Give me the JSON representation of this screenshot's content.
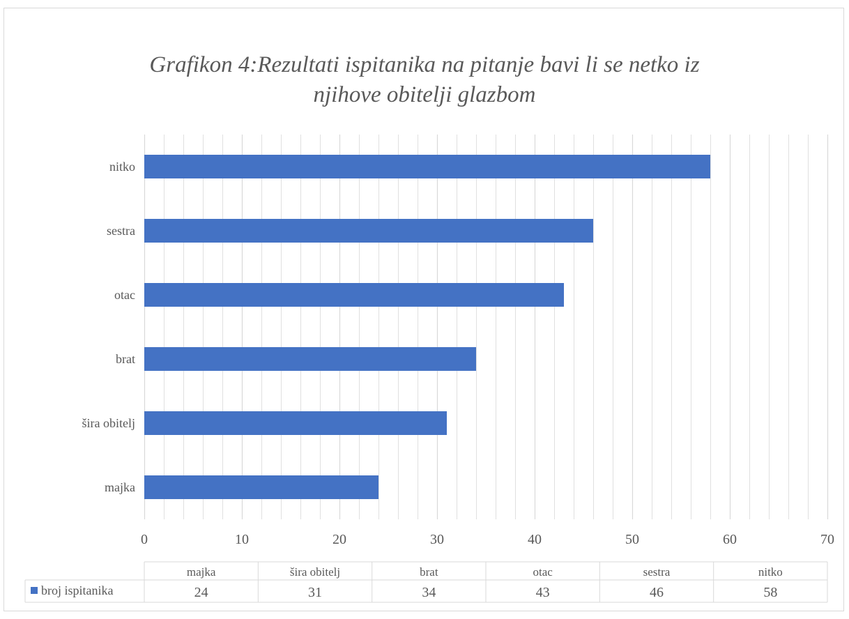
{
  "chart_data": {
    "type": "bar",
    "orientation": "horizontal",
    "title_lines": [
      "Grafikon 4:Rezultati ispitanika na pitanje bavi li se netko iz",
      "njihove obitelji glazbom"
    ],
    "categories": [
      "majka",
      "šira obitelj",
      "brat",
      "otac",
      "sestra",
      "nitko"
    ],
    "series": [
      {
        "name": "broj ispitanika",
        "values": [
          24,
          31,
          34,
          43,
          46,
          58
        ],
        "color": "#4472c4"
      }
    ],
    "xlim": [
      0,
      70
    ],
    "x_ticks": [
      0,
      10,
      20,
      30,
      40,
      50,
      60,
      70
    ],
    "minor_grid_step": 2,
    "grid": true,
    "data_table": true
  },
  "colors": {
    "bar": "#4472c4",
    "grid": "#d9d9d9",
    "text": "#595959",
    "frame": "#d9d9d9"
  }
}
